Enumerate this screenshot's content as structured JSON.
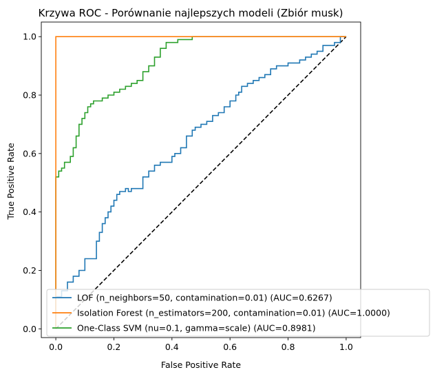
{
  "chart_data": {
    "type": "line",
    "title": "Krzywa ROC - Porównanie najlepszych modeli (Zbiór musk)",
    "xlabel": "False Positive Rate",
    "ylabel": "True Positive Rate",
    "xlim": [
      -0.05,
      1.05
    ],
    "ylim": [
      -0.03,
      1.05
    ],
    "xticks": [
      0.0,
      0.2,
      0.4,
      0.6,
      0.8,
      1.0
    ],
    "yticks": [
      0.0,
      0.2,
      0.4,
      0.6,
      0.8,
      1.0
    ],
    "xtick_labels": [
      "0.0",
      "0.2",
      "0.4",
      "0.6",
      "0.8",
      "1.0"
    ],
    "ytick_labels": [
      "0.0",
      "0.2",
      "0.4",
      "0.6",
      "0.8",
      "1.0"
    ],
    "grid": false,
    "legend_position": "lower-right",
    "series": [
      {
        "name": "LOF (n_neighbors=50, contamination=0.01) (AUC=0.6267)",
        "color": "#1f77b4",
        "x": [
          0.0,
          0.0,
          0.02,
          0.04,
          0.06,
          0.08,
          0.09,
          0.1,
          0.14,
          0.15,
          0.16,
          0.17,
          0.18,
          0.19,
          0.2,
          0.21,
          0.22,
          0.24,
          0.25,
          0.26,
          0.3,
          0.32,
          0.34,
          0.36,
          0.37,
          0.4,
          0.41,
          0.43,
          0.45,
          0.47,
          0.48,
          0.5,
          0.52,
          0.54,
          0.56,
          0.58,
          0.6,
          0.62,
          0.63,
          0.64,
          0.66,
          0.68,
          0.7,
          0.72,
          0.74,
          0.76,
          0.8,
          0.84,
          0.86,
          0.88,
          0.9,
          0.92,
          0.96,
          0.98,
          1.0
        ],
        "y": [
          0.0,
          0.04,
          0.11,
          0.13,
          0.16,
          0.18,
          0.2,
          0.2,
          0.24,
          0.3,
          0.33,
          0.36,
          0.38,
          0.4,
          0.42,
          0.44,
          0.46,
          0.47,
          0.48,
          0.47,
          0.48,
          0.52,
          0.54,
          0.56,
          0.57,
          0.57,
          0.59,
          0.6,
          0.62,
          0.66,
          0.68,
          0.69,
          0.7,
          0.71,
          0.73,
          0.74,
          0.76,
          0.78,
          0.8,
          0.81,
          0.83,
          0.84,
          0.85,
          0.86,
          0.87,
          0.89,
          0.9,
          0.91,
          0.92,
          0.93,
          0.94,
          0.95,
          0.97,
          0.98,
          1.0
        ]
      },
      {
        "name": "Isolation Forest (n_estimators=200, contamination=0.01) (AUC=1.0000)",
        "color": "#ff7f0e",
        "x": [
          0.0,
          0.0,
          1.0
        ],
        "y": [
          0.0,
          1.0,
          1.0
        ]
      },
      {
        "name": "One-Class SVM (nu=0.1, gamma=scale) (AUC=0.8981)",
        "color": "#2ca02c",
        "x": [
          0.0,
          0.0,
          0.01,
          0.02,
          0.03,
          0.04,
          0.05,
          0.06,
          0.07,
          0.08,
          0.09,
          0.1,
          0.11,
          0.12,
          0.13,
          0.14,
          0.16,
          0.18,
          0.2,
          0.22,
          0.24,
          0.26,
          0.28,
          0.3,
          0.32,
          0.34,
          0.36,
          0.38,
          0.4,
          0.42,
          0.44,
          0.46,
          0.47,
          0.48,
          0.49,
          0.5,
          0.52,
          0.56,
          0.6,
          0.64,
          0.68,
          0.72,
          0.76,
          0.8,
          0.84,
          0.88,
          0.92,
          0.96,
          0.98,
          1.0
        ],
        "y": [
          0.0,
          0.45,
          0.52,
          0.54,
          0.55,
          0.57,
          0.57,
          0.59,
          0.62,
          0.66,
          0.7,
          0.72,
          0.74,
          0.76,
          0.77,
          0.78,
          0.78,
          0.79,
          0.8,
          0.81,
          0.82,
          0.83,
          0.84,
          0.85,
          0.88,
          0.9,
          0.93,
          0.96,
          0.98,
          0.98,
          0.99,
          0.99,
          0.99,
          1.0,
          1.0,
          1.0,
          1.0,
          1.0,
          1.0,
          1.0,
          1.0,
          1.0,
          1.0,
          1.0,
          1.0,
          1.0,
          1.0,
          1.0,
          1.0,
          1.0
        ]
      },
      {
        "name": "",
        "color": "#000000",
        "dashed": true,
        "x": [
          0.0,
          1.0
        ],
        "y": [
          0.0,
          1.0
        ]
      }
    ]
  }
}
